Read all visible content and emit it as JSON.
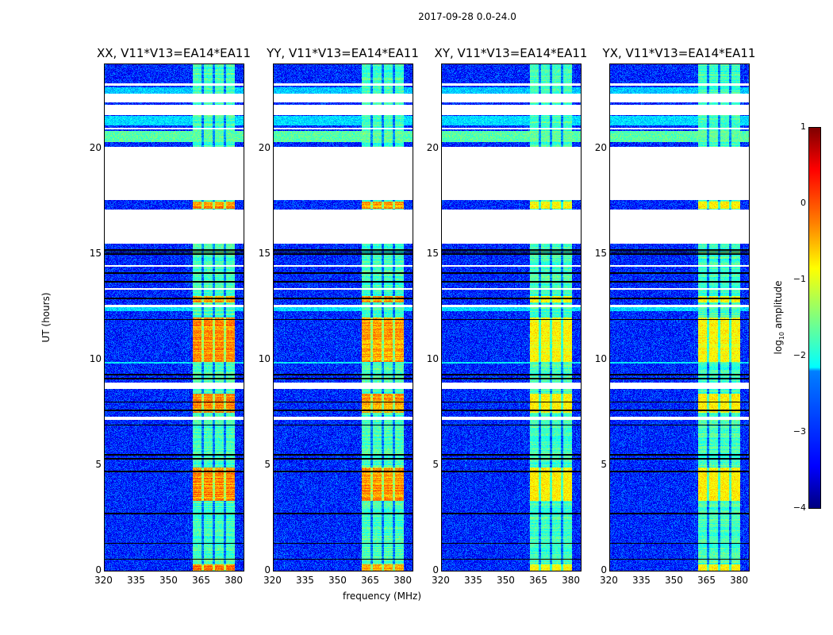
{
  "suptitle": "2017-09-28 0.0-24.0",
  "chart_data": {
    "type": "heatmap",
    "xlabel": "frequency (MHz)",
    "ylabel": "UT (hours)",
    "xlim": [
      320,
      384
    ],
    "ylim": [
      0,
      24
    ],
    "xticks": [
      "320",
      "335",
      "350",
      "365",
      "380"
    ],
    "xtick_values": [
      320,
      335,
      350,
      365,
      380
    ],
    "yticks": [
      "0",
      "5",
      "10",
      "15",
      "20"
    ],
    "ytick_values": [
      0,
      5,
      10,
      15,
      20
    ],
    "colorbar": {
      "label_main": "log",
      "label_sub": "10",
      "label_rest": " amplitude",
      "range": [
        -4,
        1
      ],
      "ticks": [
        "1",
        "0",
        "−1",
        "−2",
        "−3",
        "−4"
      ],
      "tick_values": [
        1,
        0,
        -1,
        -2,
        -3,
        -4
      ],
      "colormap": "jet"
    },
    "panels": [
      {
        "title": "XX, V11*V13=EA14*EA11",
        "peak": -0.3
      },
      {
        "title": "YY, V11*V13=EA14*EA11",
        "peak": -0.4
      },
      {
        "title": "XY, V11*V13=EA14*EA11",
        "peak": -0.8
      },
      {
        "title": "YX, V11*V13=EA14*EA11",
        "peak": -0.8
      }
    ],
    "background_level": -3.2,
    "signal_band_mhz": [
      360.5,
      380
    ],
    "subband_edges_mhz": [
      365.2,
      370.3,
      375.3
    ],
    "blank_ranges_hours": [
      [
        23.0,
        23.1
      ],
      [
        22.2,
        22.6
      ],
      [
        21.6,
        22.1
      ],
      [
        20.9,
        21.0
      ],
      [
        17.55,
        20.1
      ],
      [
        15.5,
        17.1
      ],
      [
        8.6,
        8.9
      ],
      [
        7.15,
        7.3
      ],
      [
        12.5,
        12.6
      ],
      [
        13.3,
        13.4
      ],
      [
        14.4,
        14.5
      ]
    ],
    "black_lines_hours": [
      15.0,
      15.1,
      15.2,
      14.1,
      13.7,
      12.9,
      11.9,
      9.3,
      9.1,
      8.0,
      7.6,
      6.9,
      5.5,
      5.3,
      4.7,
      2.7,
      1.3,
      0.55
    ],
    "bright_periods": [
      {
        "hours": [
          3.3,
          4.9
        ],
        "level": -0.4
      },
      {
        "hours": [
          7.5,
          8.4
        ],
        "level": -0.5
      },
      {
        "hours": [
          9.9,
          12.0
        ],
        "level": -1.0
      },
      {
        "hours": [
          12.7,
          13.0
        ],
        "level": -0.9
      },
      {
        "hours": [
          17.15,
          17.5
        ],
        "level": -0.7
      },
      {
        "hours": [
          0.0,
          0.3
        ],
        "level": -0.9
      }
    ],
    "bright_strips": [
      {
        "hours": [
          20.3,
          20.85
        ],
        "level": -1.7
      },
      {
        "hours": [
          21.1,
          21.55
        ],
        "level": -2.3
      },
      {
        "hours": [
          12.3,
          12.5
        ],
        "level": -2.3
      },
      {
        "hours": [
          9.8,
          9.9
        ],
        "level": -2.2
      },
      {
        "hours": [
          22.6,
          22.9
        ],
        "level": -2.4
      }
    ]
  }
}
